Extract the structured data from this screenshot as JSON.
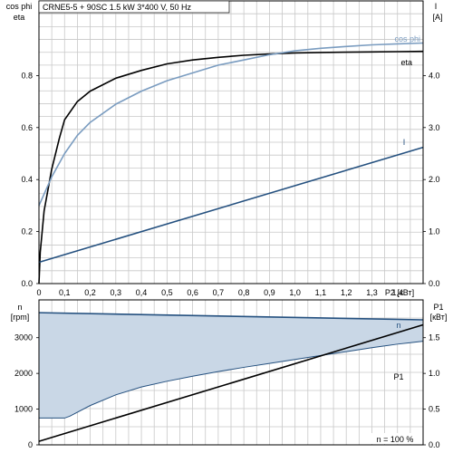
{
  "chart_data": [
    {
      "type": "line",
      "title": "CRNE5-5 + 90SC   1.5 kW   3*400 V, 50 Hz",
      "xlabel": "P2 [кВт]",
      "x_ticks": [
        "0",
        "0,1",
        "0,2",
        "0,3",
        "0,4",
        "0,5",
        "0,6",
        "0,7",
        "0,8",
        "0,9",
        "1,0",
        "1,1",
        "1,2",
        "1,3",
        "1,4"
      ],
      "xlim": [
        0,
        1.5
      ],
      "grid": true,
      "y_left": {
        "label_line1": "cos phi",
        "label_line2": "eta",
        "ylim": [
          0,
          1.0
        ],
        "ticks": [
          "0.0",
          "0.2",
          "0.4",
          "0.6",
          "0.8"
        ]
      },
      "y_right": {
        "label_line1": "I",
        "label_line2": "[A]",
        "ylim": [
          0,
          5.0
        ],
        "ticks": [
          "0.0",
          "1.0",
          "2.0",
          "3.0",
          "4.0"
        ]
      },
      "series": [
        {
          "name": "eta",
          "axis": "left",
          "color": "#000000",
          "x": [
            0.0,
            0.005,
            0.02,
            0.05,
            0.08,
            0.1,
            0.15,
            0.2,
            0.3,
            0.4,
            0.5,
            0.6,
            0.7,
            0.8,
            0.9,
            1.0,
            1.1,
            1.2,
            1.3,
            1.4,
            1.5
          ],
          "y": [
            0.0,
            0.12,
            0.28,
            0.44,
            0.56,
            0.63,
            0.7,
            0.74,
            0.79,
            0.82,
            0.845,
            0.86,
            0.87,
            0.878,
            0.883,
            0.887,
            0.889,
            0.89,
            0.891,
            0.892,
            0.893
          ]
        },
        {
          "name": "cos phi",
          "axis": "left",
          "color": "#7a9cc0",
          "x": [
            0.0,
            0.05,
            0.1,
            0.15,
            0.2,
            0.3,
            0.4,
            0.5,
            0.6,
            0.7,
            0.8,
            0.9,
            1.0,
            1.1,
            1.2,
            1.3,
            1.4,
            1.5
          ],
          "y": [
            0.3,
            0.41,
            0.5,
            0.57,
            0.62,
            0.69,
            0.74,
            0.78,
            0.81,
            0.84,
            0.86,
            0.88,
            0.895,
            0.905,
            0.912,
            0.918,
            0.922,
            0.925
          ]
        },
        {
          "name": "I",
          "axis": "right",
          "color": "#24507f",
          "x": [
            0.0,
            1.5
          ],
          "y": [
            0.41,
            2.62
          ]
        }
      ]
    },
    {
      "type": "area",
      "xlim": [
        0,
        1.5
      ],
      "grid": true,
      "y_left": {
        "label_line1": "n",
        "label_line2": "[rpm]",
        "ylim": [
          0,
          3500
        ],
        "ticks": [
          "0",
          "1000",
          "2000",
          "3000"
        ]
      },
      "y_right": {
        "label_line1": "P1",
        "label_line2": "[кВт]",
        "ylim": [
          0,
          1.75
        ],
        "ticks": [
          "0.0",
          "0.5",
          "1.0",
          "1.5"
        ]
      },
      "speed_range": {
        "name": "n",
        "upper": {
          "x": [
            0.0,
            1.5
          ],
          "y": [
            3700,
            3500
          ]
        },
        "lower": {
          "x": [
            0.0,
            0.1,
            0.12,
            0.2,
            0.3,
            0.4,
            0.5,
            0.6,
            0.7,
            0.8,
            0.9,
            1.0,
            1.1,
            1.2,
            1.3,
            1.4,
            1.45,
            1.5
          ],
          "y": [
            750,
            750,
            800,
            1100,
            1400,
            1620,
            1780,
            1920,
            2050,
            2170,
            2280,
            2390,
            2500,
            2610,
            2720,
            2820,
            2860,
            2900
          ]
        },
        "fill": "#c9d7e6",
        "color": "#24507f"
      },
      "series": [
        {
          "name": "P1",
          "axis": "right",
          "color": "#000000",
          "x": [
            0.0,
            1.5
          ],
          "y": [
            0.05,
            1.68
          ]
        }
      ],
      "annotation": "n = 100 %"
    }
  ]
}
